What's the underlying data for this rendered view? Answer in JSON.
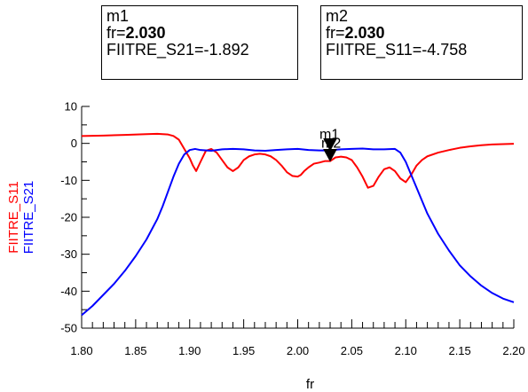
{
  "markers": [
    {
      "name": "m1",
      "fr_label": "fr=",
      "fr_value": "2.030",
      "readout": "FIITRE_S21=-1.892"
    },
    {
      "name": "m2",
      "fr_label": "fr=",
      "fr_value": "2.030",
      "readout": "FIITRE_S11=-4.758"
    }
  ],
  "chart_data": {
    "type": "line",
    "title": "",
    "xlabel": "fr",
    "ylabel": "",
    "xlim": [
      1.8,
      2.2
    ],
    "ylim": [
      -50,
      10
    ],
    "x_ticks": [
      "1.80",
      "1.85",
      "1.90",
      "1.95",
      "2.00",
      "2.05",
      "2.10",
      "2.15",
      "2.20"
    ],
    "y_ticks": [
      "10",
      "0",
      "-10",
      "-20",
      "-30",
      "-40",
      "-50"
    ],
    "grid": false,
    "y_axis_labels": [
      {
        "text": "FIITRE_S11",
        "color": "#ff0000"
      },
      {
        "text": "FIITRE_S21",
        "color": "#0000ff"
      }
    ],
    "series": [
      {
        "color": "#ff0000",
        "x": [
          1.8,
          1.82,
          1.84,
          1.86,
          1.87,
          1.88,
          1.885,
          1.89,
          1.895,
          1.9,
          1.903,
          1.906,
          1.91,
          1.915,
          1.92,
          1.925,
          1.93,
          1.935,
          1.94,
          1.945,
          1.95,
          1.955,
          1.96,
          1.965,
          1.97,
          1.975,
          1.98,
          1.985,
          1.99,
          1.995,
          2.0,
          2.003,
          2.006,
          2.01,
          2.015,
          2.02,
          2.025,
          2.03,
          2.035,
          2.04,
          2.045,
          2.05,
          2.055,
          2.06,
          2.065,
          2.07,
          2.075,
          2.08,
          2.085,
          2.09,
          2.095,
          2.1,
          2.105,
          2.11,
          2.115,
          2.12,
          2.13,
          2.14,
          2.15,
          2.16,
          2.17,
          2.18,
          2.19,
          2.2
        ],
        "values": [
          2.0,
          2.1,
          2.3,
          2.5,
          2.6,
          2.4,
          2.0,
          1.0,
          -1.5,
          -4.0,
          -6.0,
          -7.5,
          -5.0,
          -2.0,
          -1.5,
          -2.5,
          -4.5,
          -6.5,
          -7.5,
          -6.5,
          -4.5,
          -3.5,
          -3.0,
          -2.8,
          -3.0,
          -3.5,
          -4.5,
          -6.0,
          -7.8,
          -8.8,
          -9.0,
          -8.5,
          -7.5,
          -6.5,
          -5.5,
          -5.2,
          -4.8,
          -4.8,
          -3.8,
          -3.6,
          -3.8,
          -4.5,
          -6.5,
          -9.0,
          -12.0,
          -11.5,
          -9.0,
          -7.0,
          -6.5,
          -7.5,
          -9.5,
          -10.5,
          -8.5,
          -6.0,
          -4.5,
          -3.5,
          -2.5,
          -1.8,
          -1.2,
          -0.8,
          -0.5,
          -0.3,
          -0.2,
          -0.1
        ]
      },
      {
        "color": "#0000ff",
        "x": [
          1.8,
          1.81,
          1.82,
          1.83,
          1.84,
          1.85,
          1.86,
          1.87,
          1.875,
          1.88,
          1.885,
          1.89,
          1.895,
          1.9,
          1.905,
          1.91,
          1.92,
          1.93,
          1.94,
          1.95,
          1.96,
          1.97,
          1.98,
          1.99,
          2.0,
          2.01,
          2.02,
          2.03,
          2.04,
          2.05,
          2.06,
          2.07,
          2.08,
          2.09,
          2.095,
          2.1,
          2.105,
          2.11,
          2.115,
          2.12,
          2.13,
          2.14,
          2.15,
          2.16,
          2.17,
          2.18,
          2.19,
          2.2
        ],
        "values": [
          -46.5,
          -44.0,
          -41.0,
          -38.0,
          -34.5,
          -30.5,
          -26.0,
          -20.5,
          -17.0,
          -13.0,
          -9.0,
          -5.5,
          -3.0,
          -1.8,
          -1.5,
          -1.8,
          -2.0,
          -1.6,
          -1.5,
          -1.6,
          -1.9,
          -2.0,
          -1.8,
          -1.6,
          -1.5,
          -1.8,
          -1.9,
          -1.9,
          -1.6,
          -1.5,
          -1.4,
          -1.6,
          -1.6,
          -1.5,
          -2.5,
          -5.0,
          -8.5,
          -12.0,
          -15.5,
          -19.0,
          -24.5,
          -29.0,
          -33.0,
          -36.0,
          -38.5,
          -40.5,
          -42.0,
          -43.0
        ]
      }
    ],
    "plot_markers": [
      {
        "name": "m1",
        "x": 2.03,
        "y": -1.892,
        "color": "#000000"
      },
      {
        "name": "m2",
        "x": 2.03,
        "y": -4.758,
        "color": "#000000"
      }
    ]
  }
}
